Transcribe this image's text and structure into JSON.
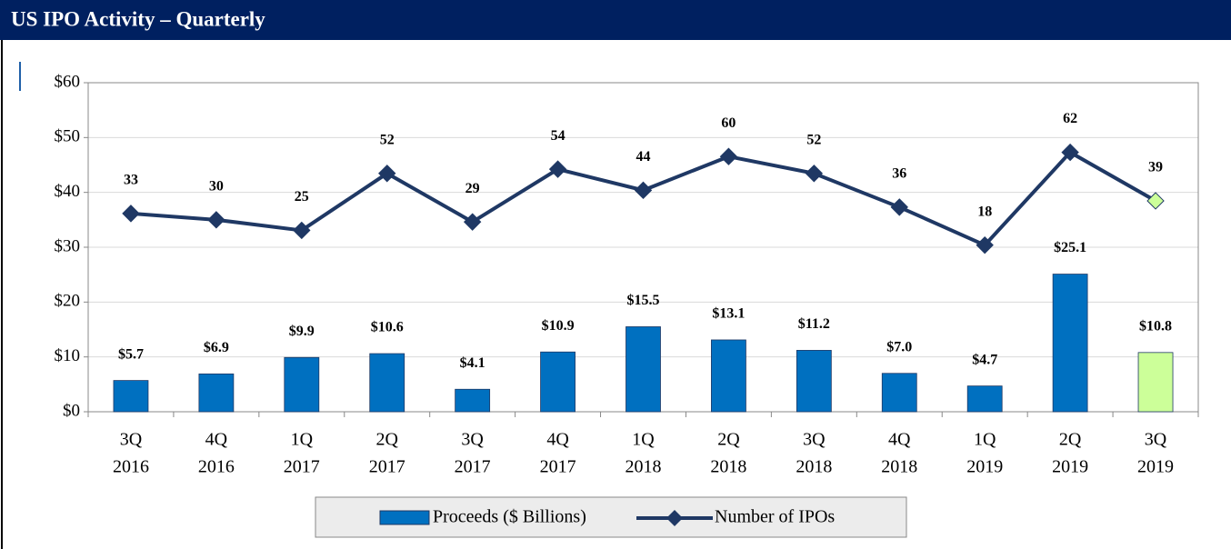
{
  "chart_data": {
    "type": "bar-line",
    "title": "US IPO Activity – Quarterly",
    "categories": [
      [
        "3Q",
        "2016"
      ],
      [
        "4Q",
        "2016"
      ],
      [
        "1Q",
        "2017"
      ],
      [
        "2Q",
        "2017"
      ],
      [
        "3Q",
        "2017"
      ],
      [
        "4Q",
        "2017"
      ],
      [
        "1Q",
        "2018"
      ],
      [
        "2Q",
        "2018"
      ],
      [
        "3Q",
        "2018"
      ],
      [
        "4Q",
        "2018"
      ],
      [
        "1Q",
        "2019"
      ],
      [
        "2Q",
        "2019"
      ],
      [
        "3Q",
        "2019"
      ]
    ],
    "series": [
      {
        "name": "Proceeds ($ Billions)",
        "type": "bar",
        "color": "#0070c0",
        "colors": [
          "#0070c0",
          "#0070c0",
          "#0070c0",
          "#0070c0",
          "#0070c0",
          "#0070c0",
          "#0070c0",
          "#0070c0",
          "#0070c0",
          "#0070c0",
          "#0070c0",
          "#0070c0",
          "#ccff99"
        ],
        "values": [
          5.7,
          6.9,
          9.9,
          10.6,
          4.1,
          10.9,
          15.5,
          13.1,
          11.2,
          7.0,
          4.7,
          25.1,
          10.8
        ],
        "value_labels": [
          "$5.7",
          "$6.9",
          "$9.9",
          "$10.6",
          "$4.1",
          "$10.9",
          "$15.5",
          "$13.1",
          "$11.2",
          "$7.0",
          "$4.7",
          "$25.1",
          "$10.8"
        ]
      },
      {
        "name": "Number of IPOs",
        "type": "line",
        "axis": "y2",
        "color": "#1f3864",
        "colors": [
          "#1f3864",
          "#1f3864",
          "#1f3864",
          "#1f3864",
          "#1f3864",
          "#1f3864",
          "#1f3864",
          "#1f3864",
          "#1f3864",
          "#1f3864",
          "#1f3864",
          "#1f3864",
          "#ccff99"
        ],
        "values": [
          33,
          30,
          25,
          52,
          29,
          54,
          44,
          60,
          52,
          36,
          18,
          62,
          39
        ]
      }
    ],
    "ylim": [
      0,
      60
    ],
    "yticks": [
      {
        "value": 0,
        "label": "$0"
      },
      {
        "value": 10,
        "label": "$10"
      },
      {
        "value": 20,
        "label": "$20"
      },
      {
        "value": 30,
        "label": "$30"
      },
      {
        "value": 40,
        "label": "$40"
      },
      {
        "value": 50,
        "label": "$50"
      },
      {
        "value": 60,
        "label": "$60"
      }
    ],
    "y2lim": [
      -61,
      95
    ],
    "grid": true,
    "legend": "bottom"
  }
}
